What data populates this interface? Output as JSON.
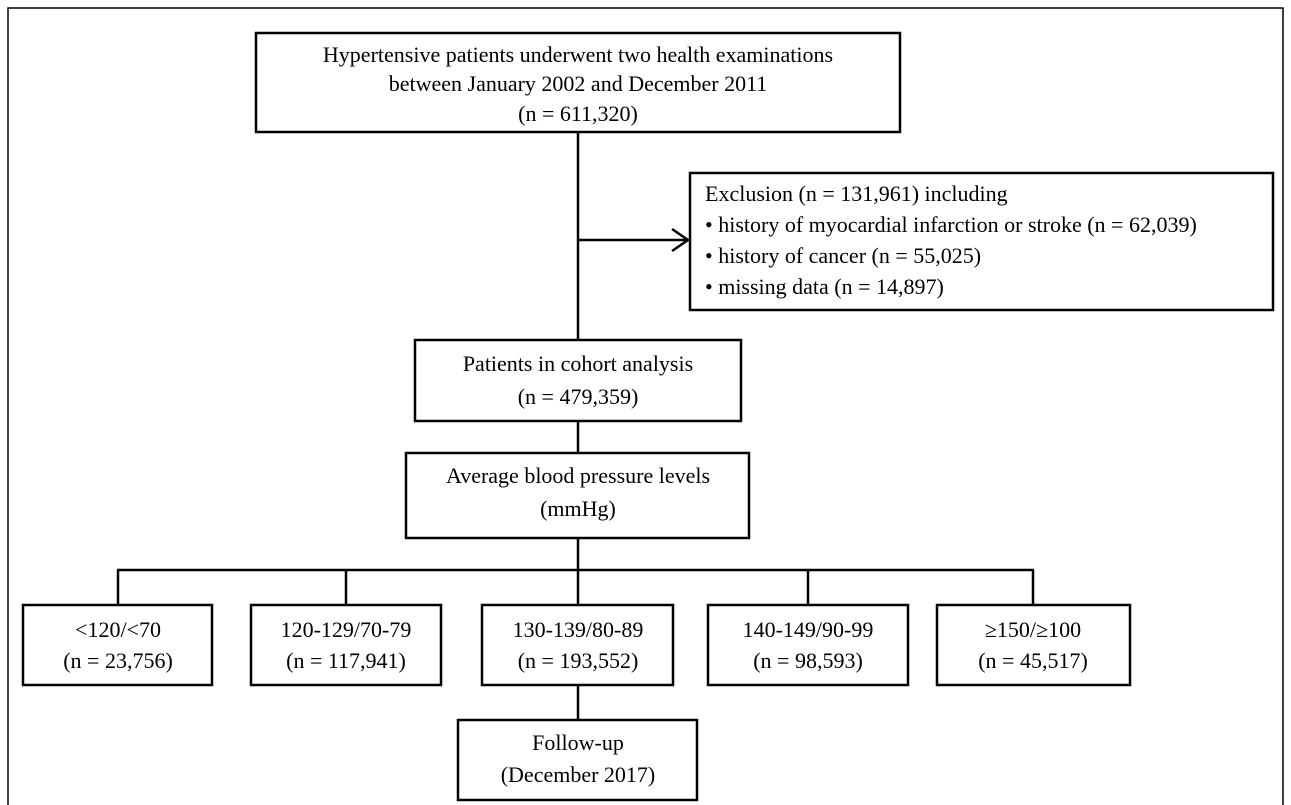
{
  "nodes": [
    {
      "lines": [
        "Hypertensive patients underwent two health examinations",
        "between January 2002 and December 2011",
        "(n = 611,320)"
      ]
    },
    {
      "lines": [
        "Exclusion (n = 131,961) including",
        "• history of myocardial infarction or stroke (n = 62,039)",
        "• history of cancer (n = 55,025)",
        "• missing data (n = 14,897)"
      ]
    },
    {
      "lines": [
        "Patients in cohort analysis",
        "(n = 479,359)"
      ]
    },
    {
      "lines": [
        "Average blood pressure levels",
        "(mmHg)"
      ]
    },
    {
      "lines": [
        "<120/<70",
        "(n = 23,756)"
      ]
    },
    {
      "lines": [
        "120-129/70-79",
        "(n = 117,941)"
      ]
    },
    {
      "lines": [
        "130-139/80-89",
        "(n = 193,552)"
      ]
    },
    {
      "lines": [
        "140-149/90-99",
        "(n = 98,593)"
      ]
    },
    {
      "lines": [
        "≥150/≥100",
        "(n = 45,517)"
      ]
    },
    {
      "lines": [
        "Follow-up",
        "(December 2017)"
      ]
    }
  ]
}
